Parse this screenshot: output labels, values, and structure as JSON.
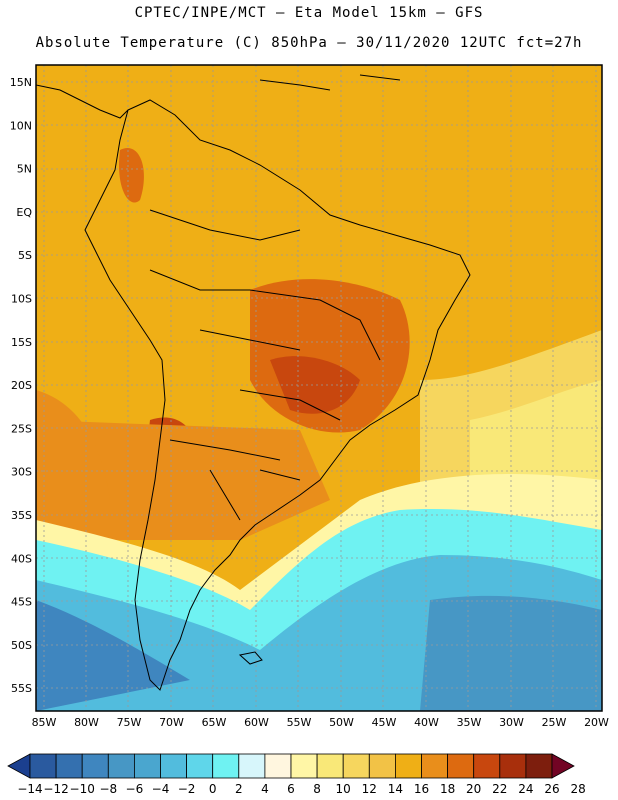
{
  "header": {
    "line1": "CPTEC/INPE/MCT –  Eta Model 15km – GFS",
    "line2": "Absolute Temperature (C) 850hPa – 30/11/2020 12UTC fct=27h"
  },
  "axes": {
    "lat_labels": [
      "15N",
      "10N",
      "5N",
      "EQ",
      "5S",
      "10S",
      "15S",
      "20S",
      "25S",
      "30S",
      "35S",
      "40S",
      "45S",
      "50S",
      "55S"
    ],
    "lon_labels": [
      "85W",
      "80W",
      "75W",
      "70W",
      "65W",
      "60W",
      "55W",
      "50W",
      "45W",
      "40W",
      "35W",
      "30W",
      "25W",
      "20W"
    ]
  },
  "colorbar": {
    "labels": [
      "-14",
      "-12",
      "-10",
      "-8",
      "-6",
      "-4",
      "-2",
      "0",
      "2",
      "4",
      "6",
      "8",
      "10",
      "12",
      "14",
      "16",
      "18",
      "20",
      "22",
      "24",
      "26",
      "28"
    ],
    "colors": [
      "#1b3f8f",
      "#2a5a9f",
      "#3470af",
      "#3f86bf",
      "#4797c5",
      "#4aa6cf",
      "#52bcdd",
      "#5fd6ea",
      "#6ff2f2",
      "#d7f6fb",
      "#fff6df",
      "#fff6a6",
      "#f9e878",
      "#f6d65e",
      "#f2c246",
      "#efaf16",
      "#e98e1b",
      "#dd6a10",
      "#c8470e",
      "#a82f0c",
      "#7d1e0d",
      "#720424"
    ]
  },
  "map": {
    "colors": {
      "frame": "#000000",
      "coast": "#000000",
      "grid": "#9a9a9a"
    }
  }
}
